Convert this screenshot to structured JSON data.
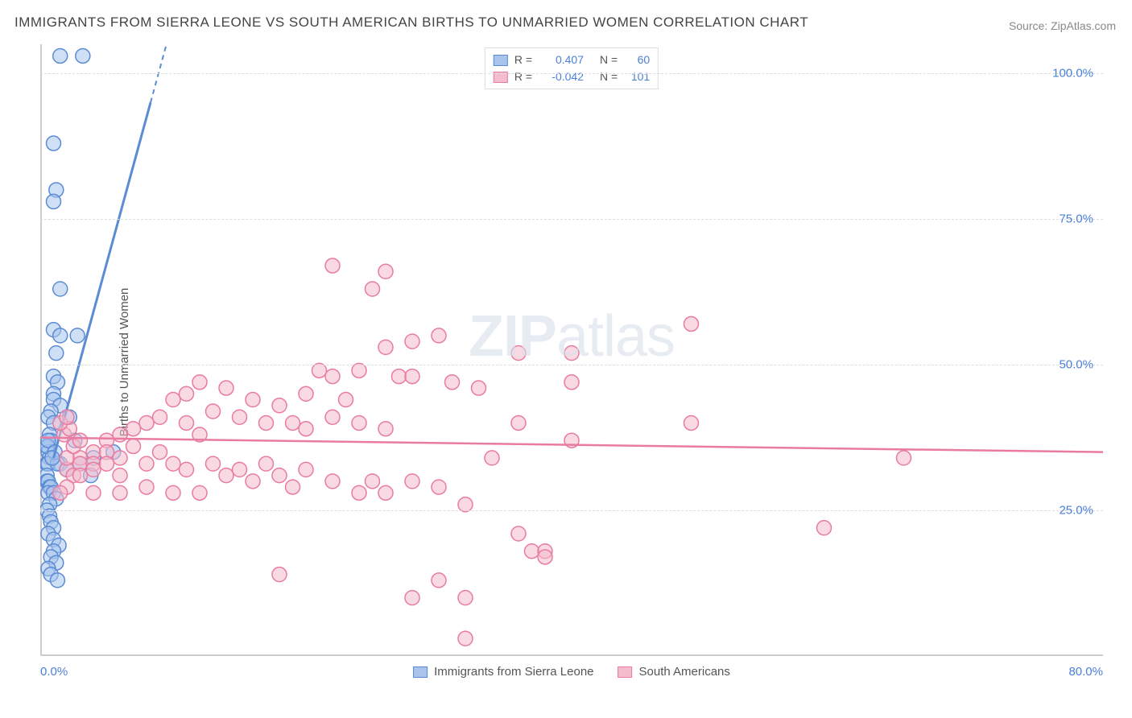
{
  "title": "IMMIGRANTS FROM SIERRA LEONE VS SOUTH AMERICAN BIRTHS TO UNMARRIED WOMEN CORRELATION CHART",
  "source_prefix": "Source: ",
  "source_name": "ZipAtlas.com",
  "ylabel": "Births to Unmarried Women",
  "watermark_bold": "ZIP",
  "watermark_light": "atlas",
  "chart": {
    "type": "scatter",
    "x_range": [
      0,
      80
    ],
    "y_range": [
      0,
      105
    ],
    "x_ticks": [
      {
        "v": 0,
        "label": "0.0%",
        "align": "left"
      },
      {
        "v": 80,
        "label": "80.0%",
        "align": "right"
      }
    ],
    "y_ticks": [
      {
        "v": 25,
        "label": "25.0%"
      },
      {
        "v": 50,
        "label": "50.0%"
      },
      {
        "v": 75,
        "label": "75.0%"
      },
      {
        "v": 100,
        "label": "100.0%"
      }
    ],
    "bottom_margin": 30,
    "marker_radius": 9,
    "marker_opacity": 0.55,
    "grid_color": "#dddddd",
    "axis_color": "#cccccc",
    "background": "#ffffff",
    "series": [
      {
        "id": "sierra_leone",
        "label": "Immigrants from Sierra Leone",
        "fill": "#a8c4ec",
        "stroke": "#5b8bd4",
        "R": "0.407",
        "N": "60",
        "trend": {
          "x1": 1,
          "y1": 34,
          "x2": 9.5,
          "y2": 105,
          "dash_from_y": 95
        },
        "points": [
          [
            1.5,
            103
          ],
          [
            3.2,
            103
          ],
          [
            1.0,
            88
          ],
          [
            1.2,
            80
          ],
          [
            1.0,
            78
          ],
          [
            1.5,
            63
          ],
          [
            1.0,
            56
          ],
          [
            1.5,
            55
          ],
          [
            2.8,
            55
          ],
          [
            1.2,
            52
          ],
          [
            1.0,
            48
          ],
          [
            1.3,
            47
          ],
          [
            1.0,
            45
          ],
          [
            1.0,
            44
          ],
          [
            1.5,
            43
          ],
          [
            0.8,
            42
          ],
          [
            0.6,
            41
          ],
          [
            1.0,
            40
          ],
          [
            2.2,
            41
          ],
          [
            0.7,
            38
          ],
          [
            0.8,
            37
          ],
          [
            2.6,
            37
          ],
          [
            0.6,
            36
          ],
          [
            0.6,
            35
          ],
          [
            0.7,
            34
          ],
          [
            0.5,
            33
          ],
          [
            0.6,
            33
          ],
          [
            1.5,
            33
          ],
          [
            1.3,
            33
          ],
          [
            2.0,
            32
          ],
          [
            4.0,
            34
          ],
          [
            3.0,
            33
          ],
          [
            3.8,
            31
          ],
          [
            5.5,
            35
          ],
          [
            0.5,
            31
          ],
          [
            0.5,
            30
          ],
          [
            0.6,
            30
          ],
          [
            0.7,
            29
          ],
          [
            0.8,
            29
          ],
          [
            0.6,
            28
          ],
          [
            1.0,
            28
          ],
          [
            1.2,
            27
          ],
          [
            0.7,
            26
          ],
          [
            0.5,
            25
          ],
          [
            0.7,
            24
          ],
          [
            0.8,
            23
          ],
          [
            1.0,
            22
          ],
          [
            0.6,
            21
          ],
          [
            1.0,
            20
          ],
          [
            1.4,
            19
          ],
          [
            1.0,
            18
          ],
          [
            0.8,
            17
          ],
          [
            1.2,
            16
          ],
          [
            0.6,
            15
          ],
          [
            0.8,
            14
          ],
          [
            1.3,
            13
          ],
          [
            0.5,
            36
          ],
          [
            0.6,
            37
          ],
          [
            1.1,
            35
          ],
          [
            0.9,
            34
          ]
        ]
      },
      {
        "id": "south_american",
        "label": "South Americans",
        "fill": "#f4bccc",
        "stroke": "#e97ba0",
        "R": "-0.042",
        "N": "101",
        "trend": {
          "x1": 0,
          "y1": 37.5,
          "x2": 80,
          "y2": 35
        },
        "points": [
          [
            22,
            67
          ],
          [
            26,
            66
          ],
          [
            25,
            63
          ],
          [
            30,
            55
          ],
          [
            28,
            54
          ],
          [
            26,
            53
          ],
          [
            21,
            49
          ],
          [
            24,
            49
          ],
          [
            27,
            48
          ],
          [
            22,
            48
          ],
          [
            28,
            48
          ],
          [
            31,
            47
          ],
          [
            33,
            46
          ],
          [
            36,
            52
          ],
          [
            20,
            45
          ],
          [
            23,
            44
          ],
          [
            12,
            47
          ],
          [
            14,
            46
          ],
          [
            11,
            45
          ],
          [
            10,
            44
          ],
          [
            16,
            44
          ],
          [
            18,
            43
          ],
          [
            13,
            42
          ],
          [
            15,
            41
          ],
          [
            9,
            41
          ],
          [
            8,
            40
          ],
          [
            11,
            40
          ],
          [
            17,
            40
          ],
          [
            19,
            40
          ],
          [
            20,
            39
          ],
          [
            7,
            39
          ],
          [
            6,
            38
          ],
          [
            12,
            38
          ],
          [
            22,
            41
          ],
          [
            24,
            40
          ],
          [
            26,
            39
          ],
          [
            5,
            37
          ],
          [
            7,
            36
          ],
          [
            4,
            35
          ],
          [
            5,
            35
          ],
          [
            6,
            34
          ],
          [
            9,
            35
          ],
          [
            3,
            34
          ],
          [
            3,
            33
          ],
          [
            4,
            33
          ],
          [
            5,
            33
          ],
          [
            8,
            33
          ],
          [
            10,
            33
          ],
          [
            2,
            32
          ],
          [
            2.5,
            31
          ],
          [
            3,
            31
          ],
          [
            6,
            31
          ],
          [
            4,
            32
          ],
          [
            11,
            32
          ],
          [
            13,
            33
          ],
          [
            15,
            32
          ],
          [
            17,
            33
          ],
          [
            14,
            31
          ],
          [
            18,
            31
          ],
          [
            16,
            30
          ],
          [
            20,
            32
          ],
          [
            22,
            30
          ],
          [
            25,
            30
          ],
          [
            19,
            29
          ],
          [
            24,
            28
          ],
          [
            26,
            28
          ],
          [
            28,
            30
          ],
          [
            8,
            29
          ],
          [
            10,
            28
          ],
          [
            12,
            28
          ],
          [
            6,
            28
          ],
          [
            4,
            28
          ],
          [
            2,
            29
          ],
          [
            1.5,
            28
          ],
          [
            2,
            34
          ],
          [
            2.5,
            36
          ],
          [
            3,
            37
          ],
          [
            1.8,
            38
          ],
          [
            2.2,
            39
          ],
          [
            1.5,
            40
          ],
          [
            2,
            41
          ],
          [
            40,
            52
          ],
          [
            40,
            47
          ],
          [
            40,
            37
          ],
          [
            36,
            40
          ],
          [
            34,
            34
          ],
          [
            36,
            21
          ],
          [
            37,
            18
          ],
          [
            38,
            18
          ],
          [
            38,
            17
          ],
          [
            30,
            29
          ],
          [
            32,
            26
          ],
          [
            30,
            13
          ],
          [
            18,
            14
          ],
          [
            28,
            10
          ],
          [
            32,
            10
          ],
          [
            32,
            3
          ],
          [
            49,
            57
          ],
          [
            49,
            40
          ],
          [
            59,
            22
          ],
          [
            65,
            34
          ]
        ]
      }
    ]
  },
  "legend_top": {
    "r_label": "R  =",
    "n_label": "N  ="
  }
}
